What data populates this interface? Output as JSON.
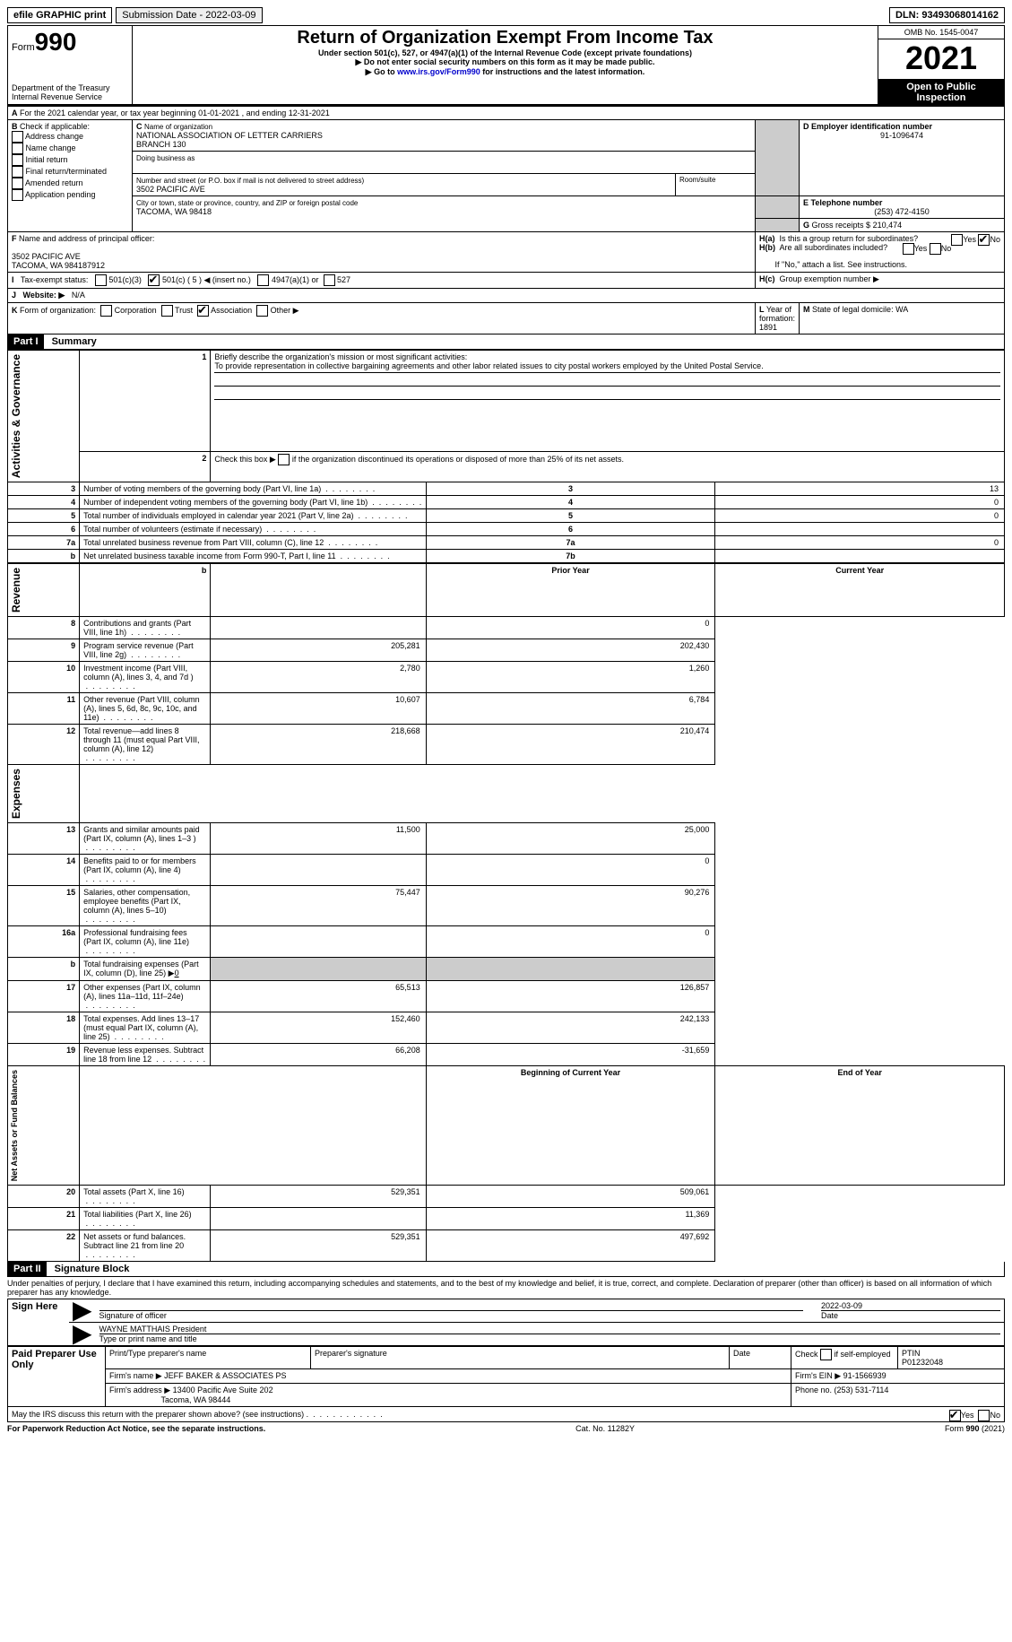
{
  "topbar": {
    "efile": "efile GRAPHIC print",
    "submission_label": "Submission Date - ",
    "submission_date": "2022-03-09",
    "dln_label": "DLN: ",
    "dln": "93493068014162"
  },
  "header": {
    "form_word": "Form",
    "form_num": "990",
    "dept": "Department of the Treasury",
    "irs": "Internal Revenue Service",
    "title": "Return of Organization Exempt From Income Tax",
    "subtitle": "Under section 501(c), 527, or 4947(a)(1) of the Internal Revenue Code (except private foundations)",
    "note1": "Do not enter social security numbers on this form as it may be made public.",
    "note2_pre": "Go to ",
    "note2_link": "www.irs.gov/Form990",
    "note2_post": " for instructions and the latest information.",
    "omb": "OMB No. 1545-0047",
    "year": "2021",
    "open": "Open to Public Inspection"
  },
  "sectionA": {
    "line": "For the 2021 calendar year, or tax year beginning 01-01-2021    , and ending 12-31-2021",
    "label_a": "A"
  },
  "sectionB": {
    "label": "B",
    "check_label": "Check if applicable:",
    "opts": [
      "Address change",
      "Name change",
      "Initial return",
      "Final return/terminated",
      "Amended return",
      "Application pending"
    ]
  },
  "sectionC": {
    "label": "C",
    "name_label": "Name of organization",
    "name1": "NATIONAL ASSOCIATION OF LETTER CARRIERS",
    "name2": "BRANCH 130",
    "dba_label": "Doing business as",
    "addr_label": "Number and street (or P.O. box if mail is not delivered to street address)",
    "room_label": "Room/suite",
    "addr": "3502 PACIFIC AVE",
    "city_label": "City or town, state or province, country, and ZIP or foreign postal code",
    "city": "TACOMA, WA  98418"
  },
  "sectionD": {
    "label": "D Employer identification number",
    "ein": "91-1096474"
  },
  "sectionE": {
    "label": "E Telephone number",
    "phone": "(253) 472-4150"
  },
  "sectionG": {
    "label": "G",
    "text": "Gross receipts $ ",
    "amount": "210,474"
  },
  "sectionF": {
    "label": "F",
    "text": "Name and address of principal officer:",
    "addr1": "3502 PACIFIC AVE",
    "addr2": "TACOMA, WA  984187912"
  },
  "sectionH": {
    "a_label": "H(a)",
    "a_text": "Is this a group return for subordinates?",
    "b_label": "H(b)",
    "b_text": "Are all subordinates included?",
    "b_note": "If \"No,\" attach a list. See instructions.",
    "c_label": "H(c)",
    "c_text": "Group exemption number ▶",
    "yes": "Yes",
    "no": "No"
  },
  "sectionI": {
    "label": "I",
    "text": "Tax-exempt status:",
    "o1": "501(c)(3)",
    "o2_pre": "501(c) ( ",
    "o2_num": "5",
    "o2_post": " ) ◀ (insert no.)",
    "o3": "4947(a)(1) or",
    "o4": "527"
  },
  "sectionJ": {
    "label": "J",
    "text": "Website: ▶",
    "val": "N/A"
  },
  "sectionK": {
    "label": "K",
    "text": "Form of organization:",
    "opts": [
      "Corporation",
      "Trust",
      "Association",
      "Other ▶"
    ]
  },
  "sectionL": {
    "label": "L",
    "text": "Year of formation: ",
    "val": "1891"
  },
  "sectionM": {
    "label": "M",
    "text": "State of legal domicile: ",
    "val": "WA"
  },
  "part1": {
    "num": "Part I",
    "title": "Summary",
    "sidelabels": {
      "ag": "Activities & Governance",
      "rev": "Revenue",
      "exp": "Expenses",
      "na": "Net Assets or\nFund Balances"
    },
    "l1_label": "1",
    "l1_text": "Briefly describe the organization's mission or most significant activities:",
    "l1_val": "To provide representation in collective bargaining agreements and other labor related issues to city postal workers employed by the United Postal Service.",
    "l2_label": "2",
    "l2_text": "Check this box ▶",
    "l2_post": "if the organization discontinued its operations or disposed of more than 25% of its net assets.",
    "rows_ag": [
      {
        "n": "3",
        "t": "Number of voting members of the governing body (Part VI, line 1a)",
        "box": "3",
        "v": "13"
      },
      {
        "n": "4",
        "t": "Number of independent voting members of the governing body (Part VI, line 1b)",
        "box": "4",
        "v": "0"
      },
      {
        "n": "5",
        "t": "Total number of individuals employed in calendar year 2021 (Part V, line 2a)",
        "box": "5",
        "v": "0"
      },
      {
        "n": "6",
        "t": "Total number of volunteers (estimate if necessary)",
        "box": "6",
        "v": ""
      },
      {
        "n": "7a",
        "t": "Total unrelated business revenue from Part VIII, column (C), line 12",
        "box": "7a",
        "v": "0"
      },
      {
        "n": "b",
        "t": "Net unrelated business taxable income from Form 990-T, Part I, line 11",
        "box": "7b",
        "v": ""
      }
    ],
    "col_py": "Prior Year",
    "col_cy": "Current Year",
    "rows_rev": [
      {
        "n": "8",
        "t": "Contributions and grants (Part VIII, line 1h)",
        "py": "",
        "cy": "0"
      },
      {
        "n": "9",
        "t": "Program service revenue (Part VIII, line 2g)",
        "py": "205,281",
        "cy": "202,430"
      },
      {
        "n": "10",
        "t": "Investment income (Part VIII, column (A), lines 3, 4, and 7d )",
        "py": "2,780",
        "cy": "1,260"
      },
      {
        "n": "11",
        "t": "Other revenue (Part VIII, column (A), lines 5, 6d, 8c, 9c, 10c, and 11e)",
        "py": "10,607",
        "cy": "6,784"
      },
      {
        "n": "12",
        "t": "Total revenue—add lines 8 through 11 (must equal Part VIII, column (A), line 12)",
        "py": "218,668",
        "cy": "210,474"
      }
    ],
    "rows_exp": [
      {
        "n": "13",
        "t": "Grants and similar amounts paid (Part IX, column (A), lines 1–3 )",
        "py": "11,500",
        "cy": "25,000"
      },
      {
        "n": "14",
        "t": "Benefits paid to or for members (Part IX, column (A), line 4)",
        "py": "",
        "cy": "0"
      },
      {
        "n": "15",
        "t": "Salaries, other compensation, employee benefits (Part IX, column (A), lines 5–10)",
        "py": "75,447",
        "cy": "90,276"
      },
      {
        "n": "16a",
        "t": "Professional fundraising fees (Part IX, column (A), line 11e)",
        "py": "",
        "cy": "0"
      },
      {
        "n": "b",
        "t": "Total fundraising expenses (Part IX, column (D), line 25) ▶",
        "py": "shade",
        "cy": "shade",
        "inline": "0"
      },
      {
        "n": "17",
        "t": "Other expenses (Part IX, column (A), lines 11a–11d, 11f–24e)",
        "py": "65,513",
        "cy": "126,857"
      },
      {
        "n": "18",
        "t": "Total expenses. Add lines 13–17 (must equal Part IX, column (A), line 25)",
        "py": "152,460",
        "cy": "242,133"
      },
      {
        "n": "19",
        "t": "Revenue less expenses. Subtract line 18 from line 12",
        "py": "66,208",
        "cy": "-31,659"
      }
    ],
    "col_boy": "Beginning of Current Year",
    "col_eoy": "End of Year",
    "rows_na": [
      {
        "n": "20",
        "t": "Total assets (Part X, line 16)",
        "py": "529,351",
        "cy": "509,061"
      },
      {
        "n": "21",
        "t": "Total liabilities (Part X, line 26)",
        "py": "",
        "cy": "11,369"
      },
      {
        "n": "22",
        "t": "Net assets or fund balances. Subtract line 21 from line 20",
        "py": "529,351",
        "cy": "497,692"
      }
    ]
  },
  "part2": {
    "num": "Part II",
    "title": "Signature Block",
    "decl": "Under penalties of perjury, I declare that I have examined this return, including accompanying schedules and statements, and to the best of my knowledge and belief, it is true, correct, and complete. Declaration of preparer (other than officer) is based on all information of which preparer has any knowledge.",
    "sign_here": "Sign Here",
    "sig_officer": "Signature of officer",
    "sig_date": "2022-03-09",
    "date_label": "Date",
    "name_title": "WAYNE MATTHAIS  President",
    "name_title_label": "Type or print name and title",
    "paid": "Paid Preparer Use Only",
    "prep_name_label": "Print/Type preparer's name",
    "prep_sig_label": "Preparer's signature",
    "check_if": "Check",
    "self_emp": "if self-employed",
    "ptin_label": "PTIN",
    "ptin": "P01232048",
    "firm_name_label": "Firm's name    ▶ ",
    "firm_name": "JEFF BAKER & ASSOCIATES PS",
    "firm_ein_label": "Firm's EIN ▶ ",
    "firm_ein": "91-1566939",
    "firm_addr_label": "Firm's address ▶ ",
    "firm_addr1": "13400 Pacific Ave Suite 202",
    "firm_addr2": "Tacoma, WA  98444",
    "phone_label": "Phone no. ",
    "phone": "(253) 531-7114",
    "discuss": "May the IRS discuss this return with the preparer shown above? (see instructions)"
  },
  "footer": {
    "pra": "For Paperwork Reduction Act Notice, see the separate instructions.",
    "cat": "Cat. No. 11282Y",
    "form": "Form 990 (2021)"
  }
}
